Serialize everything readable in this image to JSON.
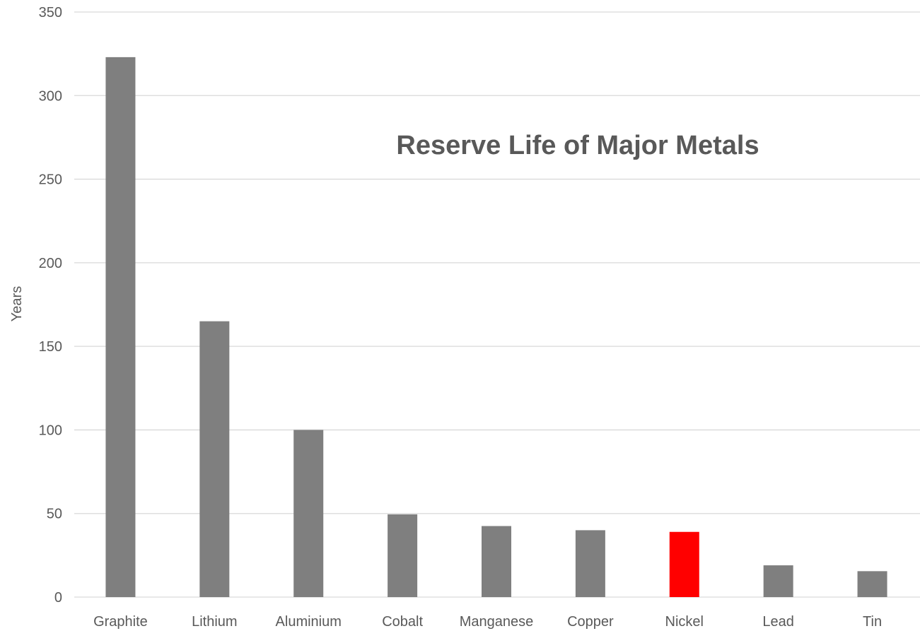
{
  "chart_data": {
    "type": "bar",
    "title": "Reserve Life of Major Metals",
    "xlabel": "",
    "ylabel": "Years",
    "ylim": [
      0,
      350
    ],
    "yticks": [
      0,
      50,
      100,
      150,
      200,
      250,
      300,
      350
    ],
    "categories": [
      "Graphite",
      "Lithium",
      "Aluminium",
      "Cobalt",
      "Manganese",
      "Copper",
      "Nickel",
      "Lead",
      "Tin"
    ],
    "values": [
      323,
      165,
      100,
      49.5,
      42.5,
      40,
      39,
      19,
      15.5
    ],
    "colors": [
      "#7f7f7f",
      "#7f7f7f",
      "#7f7f7f",
      "#7f7f7f",
      "#7f7f7f",
      "#7f7f7f",
      "#ff0000",
      "#7f7f7f",
      "#7f7f7f"
    ],
    "grid": true,
    "legend": "none"
  }
}
